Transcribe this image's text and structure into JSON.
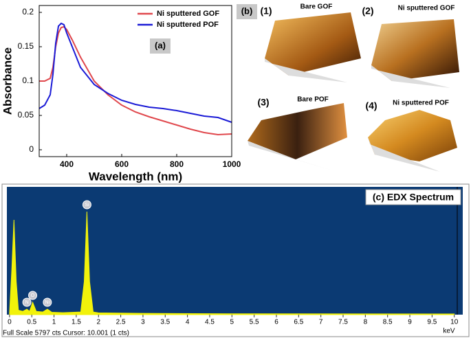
{
  "chart_data": [
    {
      "type": "line",
      "panel_label": "(a)",
      "x_label": "Wavelength (nm)",
      "y_label": "Absorbance",
      "x": [
        300,
        320,
        340,
        350,
        360,
        370,
        380,
        390,
        400,
        420,
        450,
        500,
        550,
        600,
        650,
        700,
        750,
        800,
        850,
        900,
        950,
        1000
      ],
      "series": [
        {
          "name": "Ni sputtered GOF",
          "color": "#e0474c",
          "values": [
            0.1,
            0.1,
            0.104,
            0.12,
            0.15,
            0.17,
            0.178,
            0.179,
            0.175,
            0.16,
            0.135,
            0.1,
            0.08,
            0.065,
            0.055,
            0.048,
            0.042,
            0.036,
            0.03,
            0.025,
            0.022,
            0.023
          ]
        },
        {
          "name": "Ni sputtered POF",
          "color": "#1a1ad6",
          "values": [
            0.06,
            0.065,
            0.08,
            0.11,
            0.155,
            0.18,
            0.184,
            0.182,
            0.17,
            0.15,
            0.12,
            0.095,
            0.082,
            0.072,
            0.066,
            0.062,
            0.06,
            0.057,
            0.053,
            0.049,
            0.047,
            0.04
          ]
        }
      ],
      "xlim": [
        300,
        1000
      ],
      "xticks": [
        400,
        600,
        800,
        1000
      ],
      "ylim": [
        -0.01,
        0.21
      ],
      "yticks": [
        0,
        0.05,
        0.1,
        0.15,
        0.2
      ],
      "legend": "upper right"
    },
    {
      "type": "area",
      "title": "(c) EDX Spectrum",
      "x_label": "keV",
      "footer": "Full Scale 5797 cts Cursor: 10.001 (1 cts)",
      "color": "#f2f20a",
      "background": "#0b3a73",
      "x": [
        0,
        0.05,
        0.1,
        0.15,
        0.2,
        0.3,
        0.39,
        0.45,
        0.52,
        0.6,
        0.75,
        0.85,
        0.95,
        1.2,
        1.6,
        1.68,
        1.74,
        1.8,
        1.88,
        2.0,
        3,
        5,
        10
      ],
      "values": [
        100,
        2000,
        4300,
        1500,
        200,
        150,
        250,
        150,
        560,
        150,
        120,
        250,
        110,
        90,
        120,
        1500,
        4675,
        1500,
        120,
        80,
        60,
        40,
        30
      ],
      "peak_labels": [
        {
          "label": "N",
          "x": 0.39
        },
        {
          "label": "O",
          "x": 0.52
        },
        {
          "label": "Ni",
          "x": 0.85
        },
        {
          "label": "Si",
          "x": 1.74
        }
      ],
      "xlim": [
        -0.06,
        10.19
      ],
      "xticks": [
        0,
        0.5,
        1,
        1.5,
        2,
        2.5,
        3,
        3.5,
        4,
        4.5,
        5,
        5.5,
        6,
        6.5,
        7,
        7.5,
        8,
        8.5,
        9,
        9.5,
        10
      ],
      "ylim": [
        0,
        5797
      ]
    }
  ],
  "afm": {
    "panel_label": "(b)",
    "images": [
      {
        "number": "(1)",
        "title": "Bare GOF"
      },
      {
        "number": "(2)",
        "title": "Ni sputtered GOF"
      },
      {
        "number": "(3)",
        "title": "Bare POF"
      },
      {
        "number": "(4)",
        "title": "Ni sputtered POF"
      }
    ]
  }
}
